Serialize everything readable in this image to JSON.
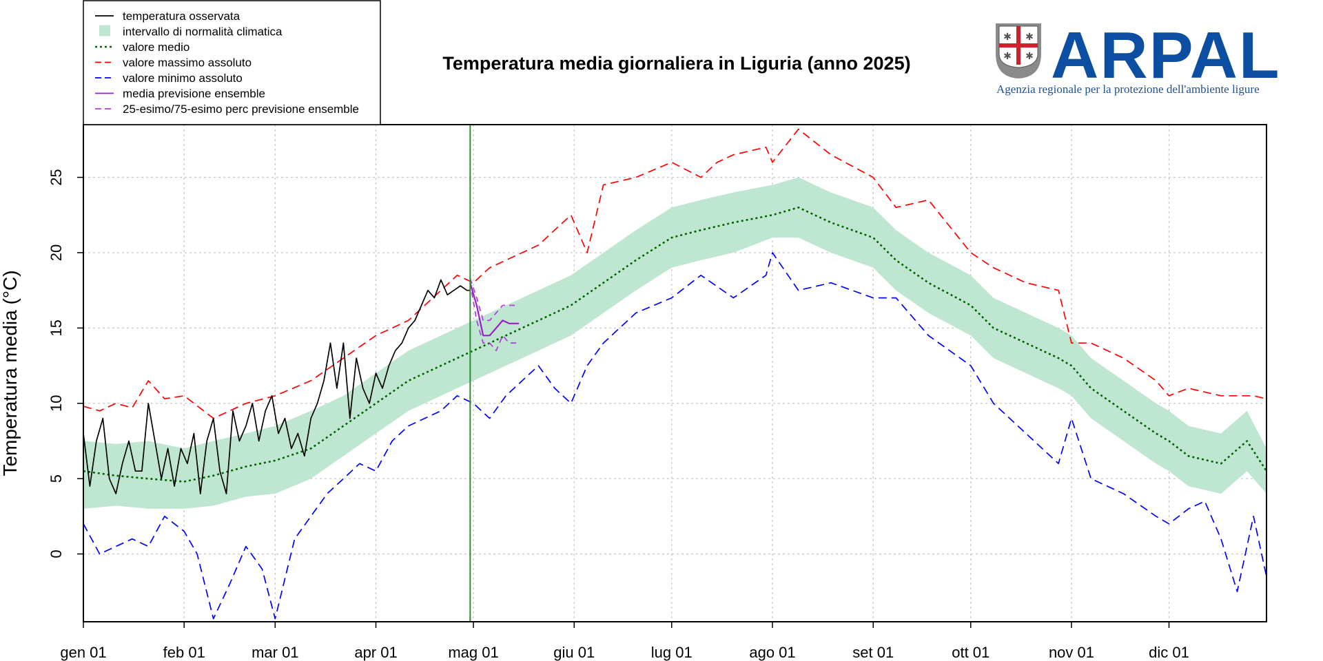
{
  "chart_data": {
    "type": "line",
    "title": "Temperatura media giornaliera in Liguria (anno 2025)",
    "xlabel": "",
    "ylabel": "Temperatura media (°C)",
    "ylim": [
      -4.5,
      28.5
    ],
    "xlim": [
      0,
      364
    ],
    "y_ticks": [
      0,
      5,
      10,
      15,
      20,
      25
    ],
    "x_ticks": [
      {
        "day": 0,
        "label": "gen 01"
      },
      {
        "day": 31,
        "label": "feb 01"
      },
      {
        "day": 59,
        "label": "mar 01"
      },
      {
        "day": 90,
        "label": "apr 01"
      },
      {
        "day": 120,
        "label": "mag 01"
      },
      {
        "day": 151,
        "label": "giu 01"
      },
      {
        "day": 181,
        "label": "lug 01"
      },
      {
        "day": 212,
        "label": "ago 01"
      },
      {
        "day": 243,
        "label": "set 01"
      },
      {
        "day": 273,
        "label": "ott 01"
      },
      {
        "day": 304,
        "label": "nov 01"
      },
      {
        "day": 334,
        "label": "dic 01"
      }
    ],
    "grid": true,
    "legend_position": "top-left",
    "current_day": 119,
    "legend": [
      {
        "key": "observed",
        "label": "temperatura osservata",
        "color": "#000000",
        "style": "solid"
      },
      {
        "key": "band",
        "label": "intervallo di normalità climatica",
        "color": "#bfe6d0",
        "style": "fill"
      },
      {
        "key": "mean",
        "label": "valore medio",
        "color": "#006400",
        "style": "dotted"
      },
      {
        "key": "max",
        "label": "valore massimo assoluto",
        "color": "#ff0000",
        "style": "dashed"
      },
      {
        "key": "min",
        "label": "valore minimo assoluto",
        "color": "#0000ff",
        "style": "dashed"
      },
      {
        "key": "ens_mean",
        "label": "media previsione ensemble",
        "color": "#9a1fc9",
        "style": "solid"
      },
      {
        "key": "ens_pct",
        "label": "25-esimo/75-esimo perc previsione ensemble",
        "color": "#b040e0",
        "style": "dashed"
      }
    ],
    "series": [
      {
        "key": "max",
        "x": [
          0,
          5,
          10,
          15,
          20,
          25,
          31,
          40,
          50,
          59,
          70,
          80,
          90,
          100,
          110,
          115,
          120,
          125,
          130,
          140,
          150,
          155,
          160,
          170,
          181,
          190,
          195,
          200,
          210,
          212,
          220,
          230,
          243,
          250,
          260,
          273,
          280,
          290,
          300,
          304,
          310,
          320,
          330,
          334,
          340,
          350,
          360,
          364
        ],
        "values": [
          9.8,
          9.5,
          10.0,
          9.7,
          11.5,
          10.3,
          10.5,
          9.0,
          10.0,
          10.5,
          11.5,
          13.0,
          14.5,
          15.5,
          17.5,
          18.5,
          18.0,
          19.0,
          19.5,
          20.5,
          22.5,
          20.0,
          24.5,
          25.0,
          26.0,
          25.0,
          26.0,
          26.5,
          27.0,
          26.0,
          28.2,
          26.5,
          25.0,
          23.0,
          23.5,
          20.0,
          19.0,
          18.0,
          17.5,
          14.0,
          14.0,
          13.0,
          11.5,
          10.5,
          11.0,
          10.5,
          10.5,
          10.3
        ]
      },
      {
        "key": "min",
        "x": [
          0,
          5,
          10,
          15,
          20,
          25,
          31,
          35,
          40,
          45,
          50,
          55,
          59,
          65,
          70,
          75,
          80,
          85,
          90,
          95,
          100,
          110,
          115,
          120,
          125,
          130,
          140,
          145,
          150,
          155,
          160,
          170,
          181,
          190,
          200,
          210,
          212,
          220,
          230,
          243,
          250,
          260,
          273,
          280,
          290,
          300,
          304,
          310,
          320,
          330,
          334,
          340,
          345,
          350,
          355,
          360,
          364
        ],
        "values": [
          2.0,
          0.0,
          0.5,
          1.0,
          0.5,
          2.5,
          1.5,
          0.0,
          -4.3,
          -2.0,
          0.5,
          -1.0,
          -4.3,
          1.0,
          2.5,
          4.0,
          5.0,
          6.0,
          5.5,
          7.5,
          8.5,
          9.5,
          10.5,
          10.0,
          9.0,
          10.5,
          12.5,
          11.0,
          10.0,
          12.5,
          14.0,
          16.0,
          17.0,
          18.5,
          17.0,
          18.5,
          20.0,
          17.5,
          18.0,
          17.0,
          17.0,
          14.5,
          12.5,
          10.0,
          8.0,
          6.0,
          9.0,
          5.0,
          4.0,
          2.5,
          2.0,
          3.0,
          3.5,
          1.0,
          -2.5,
          2.5,
          -1.5
        ]
      },
      {
        "key": "mean",
        "x": [
          0,
          10,
          20,
          31,
          40,
          50,
          59,
          70,
          80,
          90,
          100,
          110,
          120,
          130,
          140,
          150,
          160,
          170,
          181,
          190,
          200,
          212,
          220,
          230,
          243,
          250,
          260,
          273,
          280,
          290,
          300,
          304,
          310,
          320,
          330,
          334,
          340,
          350,
          358,
          364
        ],
        "values": [
          5.5,
          5.2,
          5.0,
          4.8,
          5.2,
          5.8,
          6.2,
          7.0,
          8.5,
          10.0,
          11.5,
          12.5,
          13.5,
          14.5,
          15.5,
          16.5,
          18.0,
          19.5,
          21.0,
          21.5,
          22.0,
          22.5,
          23.0,
          22.0,
          21.0,
          19.5,
          18.0,
          16.5,
          15.0,
          14.0,
          13.0,
          12.5,
          11.0,
          9.5,
          8.0,
          7.5,
          6.5,
          6.0,
          7.5,
          5.5
        ]
      },
      {
        "key": "observed",
        "x": [
          0,
          2,
          4,
          6,
          8,
          10,
          12,
          14,
          16,
          18,
          20,
          22,
          24,
          26,
          28,
          30,
          32,
          34,
          36,
          38,
          40,
          42,
          44,
          46,
          48,
          50,
          52,
          54,
          56,
          58,
          60,
          62,
          64,
          66,
          68,
          70,
          72,
          74,
          76,
          78,
          80,
          82,
          84,
          86,
          88,
          90,
          92,
          94,
          96,
          98,
          100,
          102,
          104,
          106,
          108,
          110,
          112,
          114,
          116,
          118,
          119
        ],
        "values": [
          8,
          4.5,
          7.5,
          9,
          5,
          4,
          6,
          7.5,
          5.5,
          5.5,
          10,
          7.5,
          5,
          7,
          4.5,
          7,
          6,
          8,
          4,
          7.5,
          9,
          5.5,
          4,
          9.5,
          7.5,
          8.5,
          10,
          7.5,
          9.5,
          10.5,
          8,
          9,
          7,
          8,
          6.5,
          9,
          10,
          11.5,
          14,
          11,
          14,
          9,
          13,
          11,
          10,
          12,
          11,
          12.5,
          13.5,
          14,
          15,
          15.5,
          16.5,
          17.5,
          17,
          18.2,
          17.2,
          17.5,
          17.8,
          17.5,
          17.5
        ]
      },
      {
        "key": "ens_mean",
        "x": [
          119,
          121,
          123,
          125,
          127,
          129,
          131,
          134
        ],
        "values": [
          18.0,
          16.5,
          14.5,
          14.5,
          15.0,
          15.5,
          15.3,
          15.3
        ]
      },
      {
        "key": "ens_p25",
        "x": [
          119,
          121,
          123,
          125,
          127,
          129,
          131,
          134
        ],
        "values": [
          18.0,
          15.5,
          14.0,
          14.0,
          13.5,
          14.5,
          14.0,
          14.0
        ]
      },
      {
        "key": "ens_p75",
        "x": [
          119,
          121,
          123,
          125,
          127,
          129,
          131,
          134
        ],
        "values": [
          18.3,
          17.0,
          15.5,
          15.5,
          16.0,
          16.5,
          16.5,
          16.5
        ]
      }
    ],
    "band": {
      "x": [
        0,
        10,
        20,
        31,
        40,
        50,
        59,
        70,
        80,
        90,
        100,
        110,
        120,
        130,
        140,
        150,
        160,
        170,
        181,
        190,
        200,
        212,
        220,
        230,
        243,
        250,
        260,
        273,
        280,
        290,
        300,
        304,
        310,
        320,
        330,
        334,
        340,
        350,
        358,
        364
      ],
      "low": [
        3.0,
        3.2,
        3.0,
        3.0,
        3.2,
        3.8,
        4.0,
        5.0,
        6.5,
        8.0,
        9.5,
        10.5,
        11.5,
        12.5,
        13.5,
        14.5,
        16.0,
        17.5,
        19.0,
        19.5,
        20.0,
        21.0,
        21.0,
        20.0,
        19.0,
        17.5,
        16.0,
        14.5,
        13.0,
        12.0,
        11.0,
        10.5,
        9.0,
        7.5,
        6.0,
        5.5,
        4.5,
        4.0,
        5.5,
        4.0
      ],
      "high": [
        7.5,
        7.3,
        7.5,
        7.0,
        7.5,
        8.0,
        8.5,
        9.5,
        10.5,
        12.0,
        13.5,
        14.5,
        15.5,
        16.5,
        17.5,
        18.5,
        20.0,
        21.5,
        23.0,
        23.5,
        24.0,
        24.5,
        25.0,
        24.0,
        23.0,
        21.5,
        20.0,
        18.5,
        17.0,
        16.0,
        15.0,
        14.5,
        13.0,
        11.5,
        10.0,
        9.5,
        8.5,
        8.0,
        9.5,
        7.0
      ]
    }
  },
  "logo": {
    "word": "ARPAL",
    "subtitle": "Agenzia regionale per la protezione dell'ambiente ligure",
    "color": "#0b4ea2"
  }
}
